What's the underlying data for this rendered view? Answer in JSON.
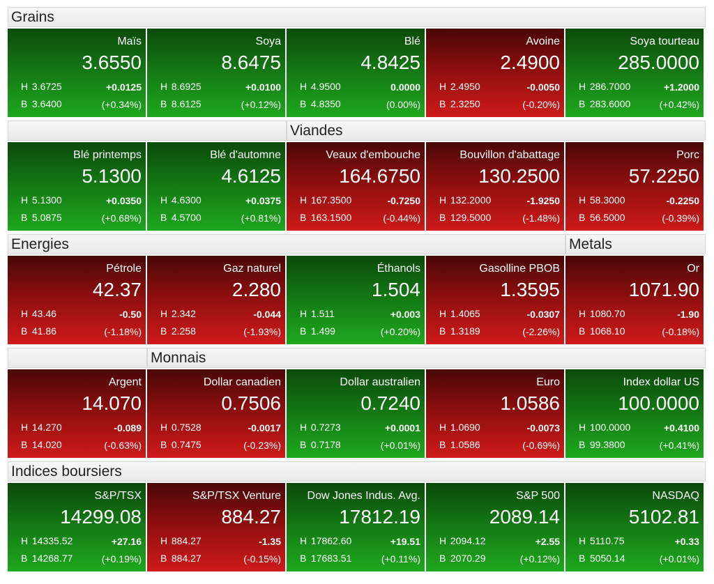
{
  "sections": [
    {
      "title": "Grains"
    },
    {
      "title": "Viandes"
    },
    {
      "title": "Energies"
    },
    {
      "title": "Metals"
    },
    {
      "title": "Monnais"
    },
    {
      "title": "Indices boursiers"
    }
  ],
  "labels": {
    "high": "H",
    "low": "B"
  },
  "colors": {
    "up": "#169416",
    "down": "#b01414",
    "header_bg": "#eeeeee"
  },
  "rows": [
    [
      {
        "name": "Maïs",
        "price": "3.6550",
        "high": "3.6725",
        "low": "3.6400",
        "change": "+0.0125",
        "pct": "(+0.34%)",
        "trend": "green"
      },
      {
        "name": "Soya",
        "price": "8.6475",
        "high": "8.6925",
        "low": "8.6125",
        "change": "+0.0100",
        "pct": "(+0.12%)",
        "trend": "green"
      },
      {
        "name": "Blé",
        "price": "4.8425",
        "high": "4.9500",
        "low": "4.8350",
        "change": "0.0000",
        "pct": "(0.00%)",
        "trend": "green"
      },
      {
        "name": "Avoine",
        "price": "2.4900",
        "high": "2.4950",
        "low": "2.3250",
        "change": "-0.0050",
        "pct": "(-0.20%)",
        "trend": "red"
      },
      {
        "name": "Soya tourteau",
        "price": "285.0000",
        "high": "286.7000",
        "low": "283.6000",
        "change": "+1.2000",
        "pct": "(+0.42%)",
        "trend": "green"
      }
    ],
    [
      {
        "name": "Blé printemps",
        "price": "5.1300",
        "high": "5.1300",
        "low": "5.0875",
        "change": "+0.0350",
        "pct": "(+0.68%)",
        "trend": "green"
      },
      {
        "name": "Blé d'automne",
        "price": "4.6125",
        "high": "4.6300",
        "low": "4.5700",
        "change": "+0.0375",
        "pct": "(+0.81%)",
        "trend": "green"
      },
      {
        "name": "Veaux d'embouche",
        "price": "164.6750",
        "high": "167.3500",
        "low": "163.1500",
        "change": "-0.7250",
        "pct": "(-0.44%)",
        "trend": "red"
      },
      {
        "name": "Bouvillon d'abattage",
        "price": "130.2500",
        "high": "132.2000",
        "low": "129.5000",
        "change": "-1.9250",
        "pct": "(-1.48%)",
        "trend": "red"
      },
      {
        "name": "Porc",
        "price": "57.2250",
        "high": "58.3000",
        "low": "56.5000",
        "change": "-0.2250",
        "pct": "(-0.39%)",
        "trend": "red"
      }
    ],
    [
      {
        "name": "Pétrole",
        "price": "42.37",
        "high": "43.46",
        "low": "41.86",
        "change": "-0.50",
        "pct": "(-1.18%)",
        "trend": "red"
      },
      {
        "name": "Gaz naturel",
        "price": "2.280",
        "high": "2.342",
        "low": "2.258",
        "change": "-0.044",
        "pct": "(-1.93%)",
        "trend": "red"
      },
      {
        "name": "Éthanols",
        "price": "1.504",
        "high": "1.511",
        "low": "1.499",
        "change": "+0.003",
        "pct": "(+0.20%)",
        "trend": "green"
      },
      {
        "name": "Gasolline PBOB",
        "price": "1.3595",
        "high": "1.4065",
        "low": "1.3189",
        "change": "-0.0307",
        "pct": "(-2.26%)",
        "trend": "red"
      },
      {
        "name": "Or",
        "price": "1071.90",
        "high": "1080.70",
        "low": "1068.10",
        "change": "-1.90",
        "pct": "(-0.18%)",
        "trend": "red"
      }
    ],
    [
      {
        "name": "Argent",
        "price": "14.070",
        "high": "14.270",
        "low": "14.020",
        "change": "-0.089",
        "pct": "(-0.63%)",
        "trend": "red"
      },
      {
        "name": "Dollar canadien",
        "price": "0.7506",
        "high": "0.7528",
        "low": "0.7475",
        "change": "-0.0017",
        "pct": "(-0.23%)",
        "trend": "red"
      },
      {
        "name": "Dollar australien",
        "price": "0.7240",
        "high": "0.7273",
        "low": "0.7178",
        "change": "+0.0001",
        "pct": "(+0.01%)",
        "trend": "green"
      },
      {
        "name": "Euro",
        "price": "1.0586",
        "high": "1.0690",
        "low": "1.0586",
        "change": "-0.0073",
        "pct": "(-0.69%)",
        "trend": "red"
      },
      {
        "name": "Index dollar US",
        "price": "100.0000",
        "high": "100.0000",
        "low": "99.3800",
        "change": "+0.4100",
        "pct": "(+0.41%)",
        "trend": "green"
      }
    ],
    [
      {
        "name": "S&P/TSX",
        "price": "14299.08",
        "high": "14335.52",
        "low": "14268.77",
        "change": "+27.16",
        "pct": "(+0.19%)",
        "trend": "green"
      },
      {
        "name": "S&P/TSX Venture",
        "price": "884.27",
        "high": "884.27",
        "low": "884.27",
        "change": "-1.35",
        "pct": "(-0.15%)",
        "trend": "red"
      },
      {
        "name": "Dow Jones Indus. Avg.",
        "price": "17812.19",
        "high": "17862.60",
        "low": "17683.51",
        "change": "+19.51",
        "pct": "(+0.11%)",
        "trend": "green"
      },
      {
        "name": "S&P 500",
        "price": "2089.14",
        "high": "2094.12",
        "low": "2070.29",
        "change": "+2.55",
        "pct": "(+0.12%)",
        "trend": "green"
      },
      {
        "name": "NASDAQ",
        "price": "5102.81",
        "high": "5110.75",
        "low": "5050.14",
        "change": "+0.33",
        "pct": "(+0.01%)",
        "trend": "green"
      }
    ]
  ]
}
